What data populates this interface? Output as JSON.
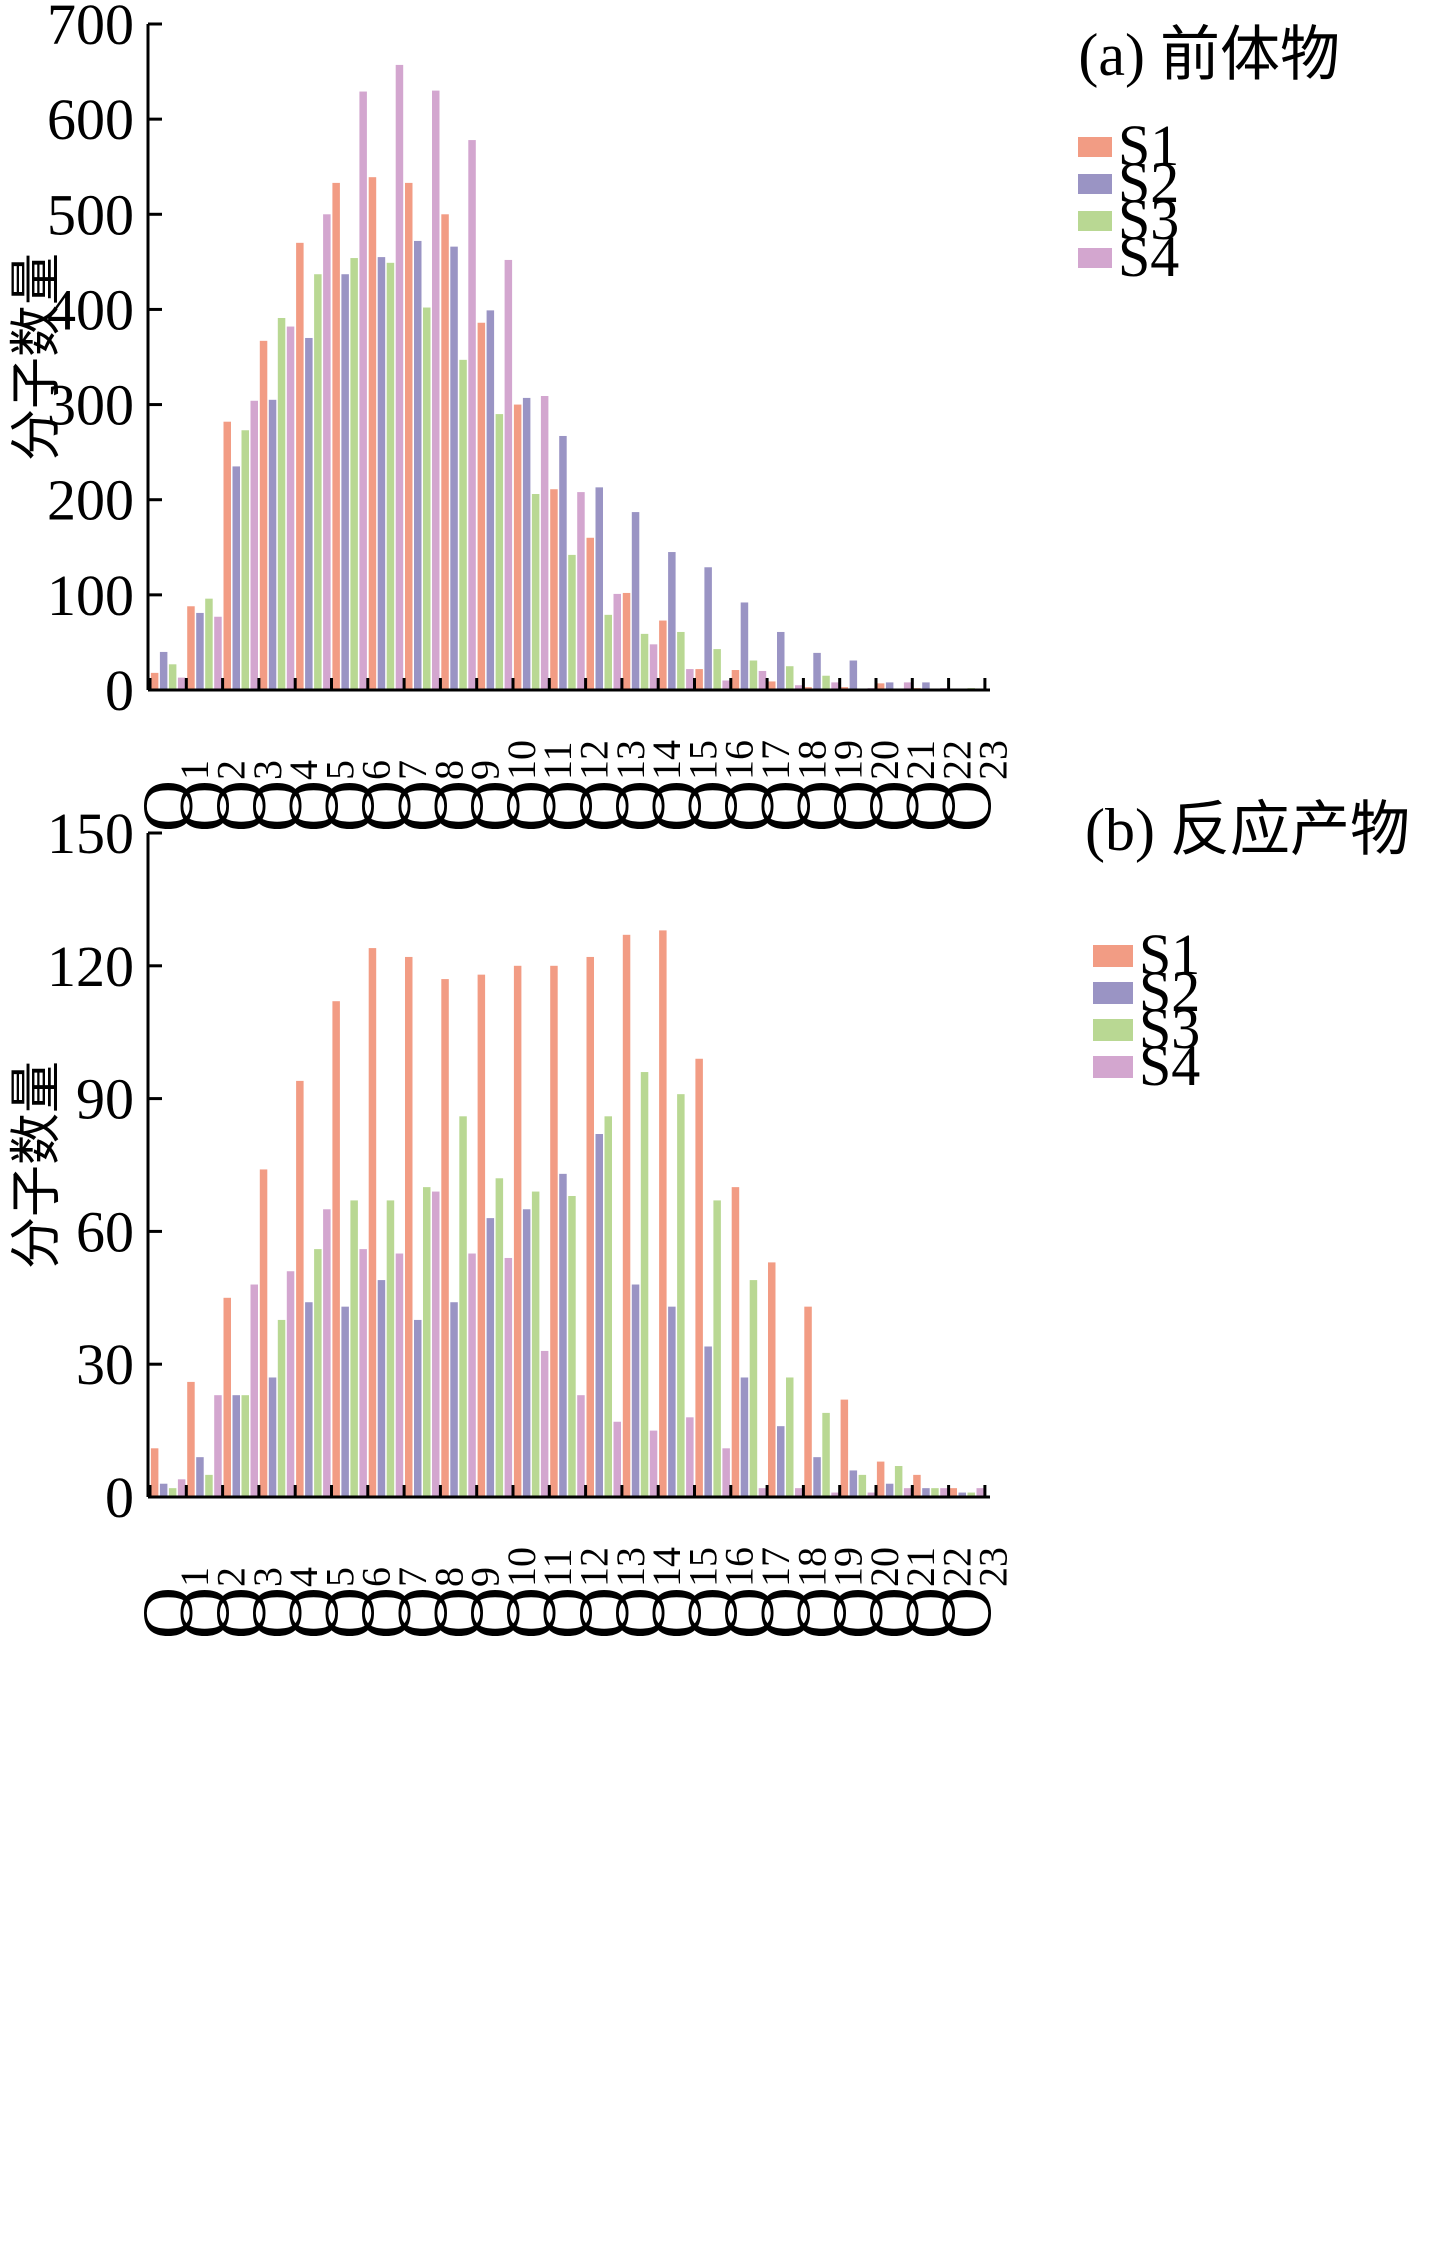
{
  "colors": {
    "S1": "#F29C84",
    "S2": "#9A94C4",
    "S3": "#B9D893",
    "S4": "#D3A6CF"
  },
  "chart_data": [
    {
      "type": "bar",
      "title": "(a) 前体物",
      "ylabel": "分子数量",
      "xlabel": "",
      "ylim": [
        0,
        700
      ],
      "yticks": [
        "0",
        "100",
        "200",
        "300",
        "400",
        "500",
        "600",
        "700"
      ],
      "grid": false,
      "legend_position": "top-right",
      "category_prefix": "O",
      "categories": [
        "1",
        "2",
        "3",
        "4",
        "5",
        "6",
        "7",
        "8",
        "9",
        "10",
        "11",
        "12",
        "13",
        "14",
        "15",
        "16",
        "17",
        "18",
        "19",
        "20",
        "21",
        "22",
        "23"
      ],
      "series": [
        {
          "name": "S1",
          "values": [
            18,
            88,
            282,
            367,
            470,
            533,
            539,
            533,
            500,
            386,
            300,
            211,
            160,
            102,
            73,
            22,
            21,
            9,
            3,
            3,
            7,
            2,
            0
          ]
        },
        {
          "name": "S2",
          "values": [
            40,
            81,
            235,
            305,
            370,
            437,
            455,
            472,
            466,
            399,
            307,
            267,
            213,
            187,
            145,
            129,
            92,
            61,
            39,
            31,
            8,
            8,
            0
          ]
        },
        {
          "name": "S3",
          "values": [
            27,
            96,
            273,
            391,
            437,
            454,
            449,
            402,
            347,
            290,
            206,
            142,
            79,
            59,
            61,
            43,
            31,
            25,
            15,
            0,
            0,
            0,
            2
          ]
        },
        {
          "name": "S4",
          "values": [
            13,
            77,
            304,
            382,
            500,
            629,
            657,
            630,
            578,
            452,
            309,
            208,
            101,
            48,
            22,
            10,
            20,
            5,
            8,
            2,
            8,
            2,
            0
          ]
        }
      ]
    },
    {
      "type": "bar",
      "title": "(b) 反应产物",
      "ylabel": "分子数量",
      "xlabel": "",
      "ylim": [
        0,
        150
      ],
      "yticks": [
        "0",
        "30",
        "60",
        "90",
        "120",
        "150"
      ],
      "grid": false,
      "legend_position": "top-right",
      "category_prefix": "O",
      "categories": [
        "1",
        "2",
        "3",
        "4",
        "5",
        "6",
        "7",
        "8",
        "9",
        "10",
        "11",
        "12",
        "13",
        "14",
        "15",
        "16",
        "17",
        "18",
        "19",
        "20",
        "21",
        "22",
        "23"
      ],
      "series": [
        {
          "name": "S1",
          "values": [
            11,
            26,
            45,
            74,
            94,
            112,
            124,
            122,
            117,
            118,
            120,
            120,
            122,
            127,
            128,
            99,
            70,
            53,
            43,
            22,
            8,
            5,
            2
          ]
        },
        {
          "name": "S2",
          "values": [
            3,
            9,
            23,
            27,
            44,
            43,
            49,
            40,
            44,
            63,
            65,
            73,
            82,
            48,
            43,
            34,
            27,
            16,
            9,
            6,
            3,
            2,
            1
          ]
        },
        {
          "name": "S3",
          "values": [
            2,
            5,
            23,
            40,
            56,
            67,
            67,
            70,
            86,
            72,
            69,
            68,
            86,
            96,
            91,
            67,
            49,
            27,
            19,
            5,
            7,
            2,
            1
          ]
        },
        {
          "name": "S4",
          "values": [
            4,
            23,
            48,
            51,
            65,
            56,
            55,
            69,
            55,
            54,
            33,
            23,
            17,
            15,
            18,
            11,
            2,
            2,
            1,
            1,
            2,
            2,
            2
          ]
        }
      ]
    }
  ]
}
